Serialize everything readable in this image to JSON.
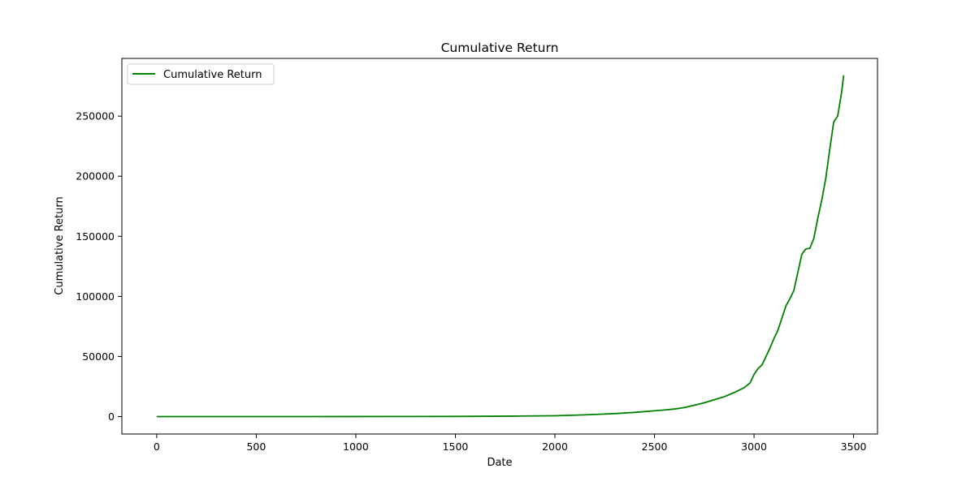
{
  "chart_data": {
    "type": "line",
    "title": "Cumulative Return",
    "xlabel": "Date",
    "ylabel": "Cumulative Return",
    "xlim": [
      -175,
      3620
    ],
    "ylim": [
      -14500,
      298000
    ],
    "xticks": [
      0,
      500,
      1000,
      1500,
      2000,
      2500,
      3000,
      3500
    ],
    "xtick_labels": [
      "0",
      "500",
      "1000",
      "1500",
      "2000",
      "2500",
      "3000",
      "3500"
    ],
    "yticks": [
      0,
      50000,
      100000,
      150000,
      200000,
      250000
    ],
    "ytick_labels": [
      "0",
      "50000",
      "100000",
      "150000",
      "200000",
      "250000"
    ],
    "grid": false,
    "legend": {
      "position": "top-left"
    },
    "series": [
      {
        "name": "Cumulative Return",
        "color": "#008000",
        "x": [
          0,
          500,
          1000,
          1500,
          1800,
          2000,
          2100,
          2200,
          2300,
          2400,
          2500,
          2550,
          2600,
          2650,
          2700,
          2750,
          2800,
          2850,
          2900,
          2950,
          2980,
          3000,
          3020,
          3040,
          3060,
          3080,
          3100,
          3120,
          3140,
          3160,
          3180,
          3200,
          3220,
          3240,
          3260,
          3280,
          3300,
          3320,
          3340,
          3360,
          3380,
          3400,
          3420,
          3440,
          3450
        ],
        "y": [
          0,
          0,
          50,
          150,
          400,
          700,
          1200,
          1800,
          2500,
          3500,
          4800,
          5500,
          6300,
          7500,
          9500,
          11500,
          14000,
          16500,
          20000,
          24000,
          28000,
          35000,
          40000,
          43000,
          50000,
          57000,
          65000,
          72000,
          82000,
          92000,
          98000,
          105000,
          120000,
          135000,
          139500,
          140000,
          148000,
          165000,
          180000,
          198000,
          222000,
          245000,
          250000,
          270000,
          284000
        ]
      }
    ]
  }
}
